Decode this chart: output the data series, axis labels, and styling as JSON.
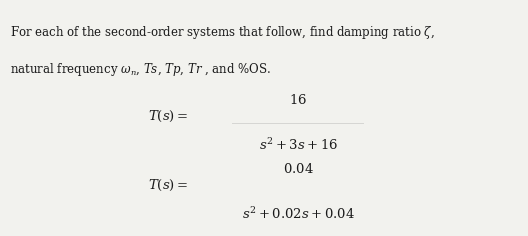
{
  "bg_color": "#f2f2ee",
  "text_color": "#1a1a1a",
  "fig_width": 5.28,
  "fig_height": 2.36,
  "dpi": 100
}
